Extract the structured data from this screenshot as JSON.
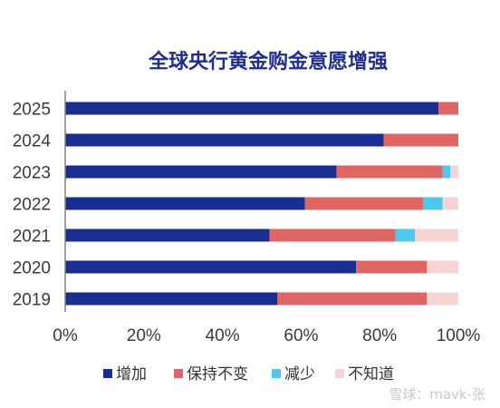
{
  "chart_data": {
    "type": "bar",
    "orientation": "horizontal",
    "stacked": true,
    "title": "全球央行黄金购金意愿增强",
    "categories": [
      "2025",
      "2024",
      "2023",
      "2022",
      "2021",
      "2020",
      "2019"
    ],
    "series": [
      {
        "name": "增加",
        "color": "#1a2d91",
        "values": [
          95,
          81,
          69,
          61,
          52,
          74,
          54
        ]
      },
      {
        "name": "保持不变",
        "color": "#e06666",
        "values": [
          5,
          19,
          27,
          30,
          32,
          18,
          38
        ]
      },
      {
        "name": "减少",
        "color": "#4fc8ee",
        "values": [
          0,
          0,
          2,
          5,
          5,
          0,
          0
        ]
      },
      {
        "name": "不知道",
        "color": "#f7d4d4",
        "values": [
          0,
          0,
          2,
          4,
          11,
          8,
          8
        ]
      }
    ],
    "xlim": [
      0,
      100
    ],
    "xticks": [
      "0%",
      "20%",
      "40%",
      "60%",
      "80%",
      "100%"
    ],
    "legend_position": "bottom",
    "grid": false
  },
  "watermark": "雪球：mavk-张"
}
